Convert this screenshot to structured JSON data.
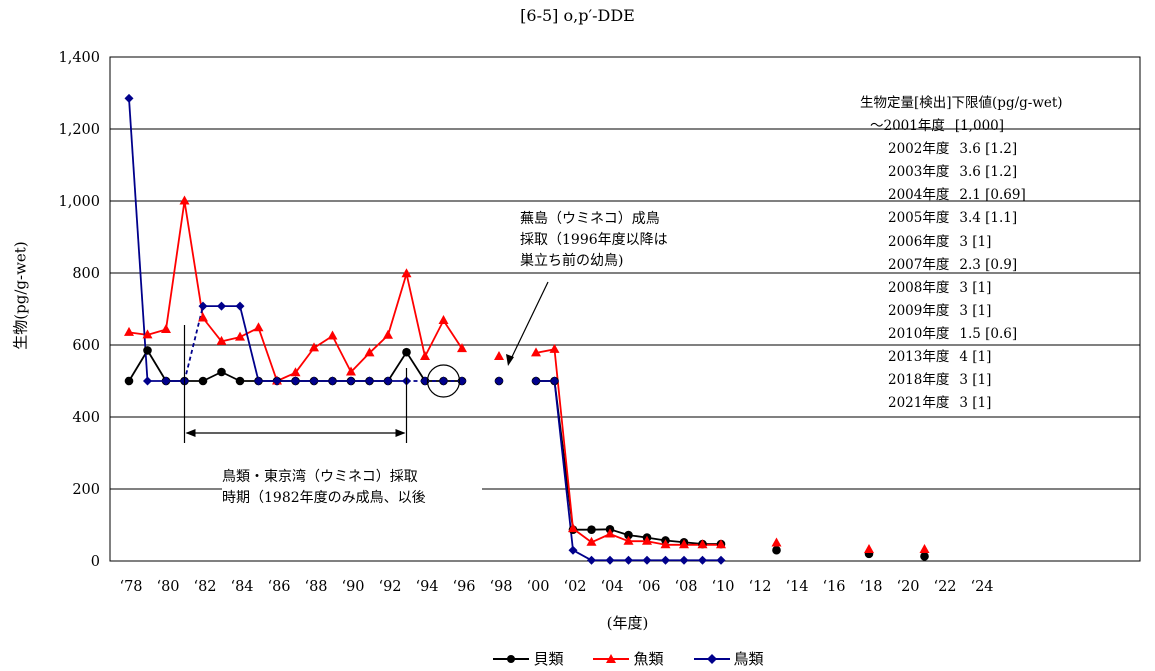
{
  "chart_data": {
    "type": "line",
    "title": "[6-5] o,p′-DDE",
    "ylabel": "生物(pg/g-wet)",
    "xlabel": "(年度)",
    "ylim": [
      0,
      1400
    ],
    "yticks": [
      0,
      200,
      400,
      600,
      800,
      1000,
      1200,
      1400
    ],
    "ytick_labels": [
      "0",
      "200",
      "400",
      "600",
      "800",
      "1,000",
      "1,200",
      "1,400"
    ],
    "xlim": [
      1978,
      2024
    ],
    "xticks": [
      1978,
      1980,
      1982,
      1984,
      1986,
      1988,
      1990,
      1992,
      1994,
      1996,
      1998,
      2000,
      2002,
      2004,
      2006,
      2008,
      2010,
      2012,
      2014,
      2016,
      2018,
      2020,
      2022,
      2024
    ],
    "xtick_labels": [
      "‘78",
      "‘80",
      "‘82",
      "‘84",
      "‘86",
      "‘88",
      "‘90",
      "‘92",
      "‘94",
      "‘96",
      "‘98",
      "‘00",
      "‘02",
      "‘04",
      "‘06",
      "‘08",
      "‘10",
      "‘12",
      "‘14",
      "‘16",
      "‘18",
      "‘20",
      "‘22",
      "‘24"
    ],
    "grid": "horizontal",
    "legend_position": "bottom",
    "series": [
      {
        "name": "貝類",
        "color": "#000000",
        "marker": "circle",
        "points": [
          [
            1978,
            500
          ],
          [
            1979,
            585
          ],
          [
            1980,
            500
          ],
          [
            1981,
            500
          ],
          [
            1982,
            500
          ],
          [
            1983,
            525
          ],
          [
            1984,
            500
          ],
          [
            1985,
            500
          ],
          [
            1986,
            500
          ],
          [
            1987,
            500
          ],
          [
            1988,
            500
          ],
          [
            1989,
            500
          ],
          [
            1990,
            500
          ],
          [
            1991,
            500
          ],
          [
            1992,
            500
          ],
          [
            1993,
            580
          ],
          [
            1994,
            500
          ],
          [
            1995,
            500
          ],
          [
            1996,
            500
          ],
          [
            1998,
            500
          ],
          [
            2000,
            500
          ],
          [
            2001,
            500
          ],
          [
            2002,
            87
          ],
          [
            2003,
            87
          ],
          [
            2004,
            88
          ],
          [
            2005,
            72
          ],
          [
            2006,
            65
          ],
          [
            2007,
            57
          ],
          [
            2008,
            52
          ],
          [
            2009,
            47
          ],
          [
            2010,
            47
          ],
          [
            2013,
            30
          ],
          [
            2018,
            20
          ],
          [
            2021,
            13
          ]
        ]
      },
      {
        "name": "魚類",
        "color": "#ff0000",
        "marker": "triangle",
        "points": [
          [
            1978,
            635
          ],
          [
            1979,
            628
          ],
          [
            1980,
            643
          ],
          [
            1981,
            1000
          ],
          [
            1982,
            675
          ],
          [
            1983,
            610
          ],
          [
            1984,
            622
          ],
          [
            1985,
            648
          ],
          [
            1986,
            500
          ],
          [
            1987,
            523
          ],
          [
            1988,
            592
          ],
          [
            1989,
            625
          ],
          [
            1990,
            525
          ],
          [
            1991,
            578
          ],
          [
            1992,
            627
          ],
          [
            1993,
            798
          ],
          [
            1994,
            568
          ],
          [
            1995,
            668
          ],
          [
            1996,
            590
          ],
          [
            1998,
            568
          ],
          [
            2000,
            578
          ],
          [
            2001,
            588
          ],
          [
            2002,
            90
          ],
          [
            2003,
            52
          ],
          [
            2004,
            75
          ],
          [
            2005,
            55
          ],
          [
            2006,
            55
          ],
          [
            2007,
            45
          ],
          [
            2008,
            45
          ],
          [
            2009,
            45
          ],
          [
            2010,
            45
          ],
          [
            2013,
            50
          ],
          [
            2018,
            32
          ],
          [
            2021,
            32
          ]
        ]
      },
      {
        "name": "鳥類",
        "color": "#00008b",
        "marker": "diamond",
        "points": [
          [
            1978,
            1285
          ],
          [
            1979,
            500
          ],
          [
            1980,
            500
          ],
          [
            1981,
            500
          ],
          [
            1982,
            708
          ],
          [
            1983,
            708
          ],
          [
            1984,
            708
          ],
          [
            1985,
            500
          ],
          [
            1986,
            500
          ],
          [
            1987,
            500
          ],
          [
            1988,
            500
          ],
          [
            1989,
            500
          ],
          [
            1990,
            500
          ],
          [
            1991,
            500
          ],
          [
            1992,
            500
          ],
          [
            1993,
            500
          ],
          [
            1994,
            500
          ],
          [
            1995,
            500
          ],
          [
            1996,
            500
          ],
          [
            1998,
            500
          ],
          [
            2000,
            500
          ],
          [
            2001,
            500
          ],
          [
            2002,
            30
          ],
          [
            2003,
            2
          ],
          [
            2004,
            2
          ],
          [
            2005,
            2
          ],
          [
            2006,
            2
          ],
          [
            2007,
            2
          ],
          [
            2008,
            2
          ],
          [
            2009,
            2
          ],
          [
            2010,
            2
          ]
        ]
      }
    ],
    "annotations": {
      "tokyo_bay": "鳥類・東京湾（ウミネコ）採取\n時期（1982年度のみ成鳥、以後",
      "kabushima": "蕪島（ウミネコ）成鳥\n採取（1996年度以降は\n巣立ち前の幼鳥)"
    },
    "detection_limits": {
      "title": "生物定量[検出]下限値(pg/g-wet)",
      "rows": [
        {
          "year": "～2001年度",
          "value": "[1,000]"
        },
        {
          "year": "2002年度",
          "value": "3.6 [1.2]"
        },
        {
          "year": "2003年度",
          "value": "3.6 [1.2]"
        },
        {
          "year": "2004年度",
          "value": "2.1 [0.69]"
        },
        {
          "year": "2005年度",
          "value": "3.4 [1.1]"
        },
        {
          "year": "2006年度",
          "value": "3 [1]"
        },
        {
          "year": "2007年度",
          "value": "2.3 [0.9]"
        },
        {
          "year": "2008年度",
          "value": "3 [1]"
        },
        {
          "year": "2009年度",
          "value": "3 [1]"
        },
        {
          "year": "2010年度",
          "value": "1.5 [0.6]"
        },
        {
          "year": "2013年度",
          "value": "4 [1]"
        },
        {
          "year": "2018年度",
          "value": "3 [1]"
        },
        {
          "year": "2021年度",
          "value": "3 [1]"
        }
      ]
    }
  }
}
